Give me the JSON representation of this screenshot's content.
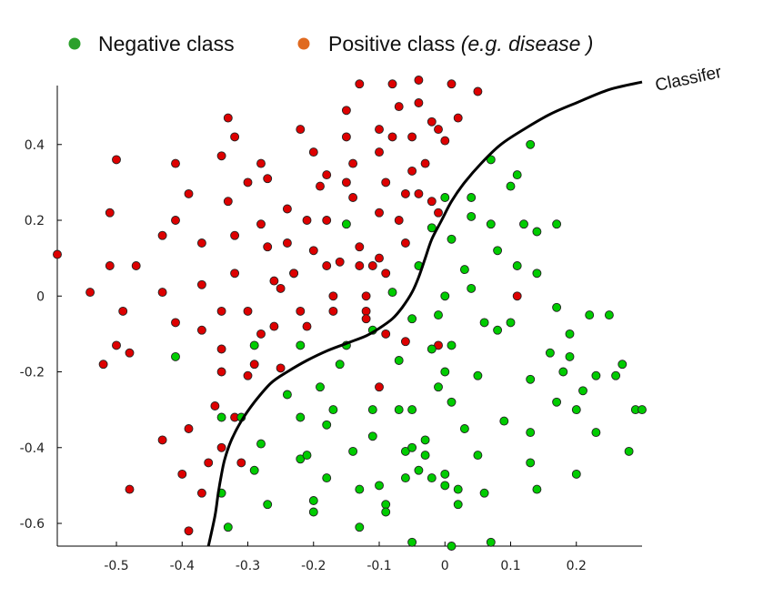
{
  "chart_data": {
    "type": "scatter",
    "legend": {
      "placement": "top",
      "entries": [
        {
          "label": "Negative class",
          "color": "#2ca02c"
        },
        {
          "label": "Positive class ",
          "label_italic": "(e.g. disease )",
          "color": "#e06a20"
        }
      ]
    },
    "annotation": "Classifer",
    "xlim": [
      -0.59,
      0.3
    ],
    "ylim": [
      -0.66,
      0.57
    ],
    "xticks": [
      -0.5,
      -0.4,
      -0.3,
      -0.2,
      -0.1,
      0,
      0.1,
      0.2
    ],
    "xtick_labels": [
      "-0.5",
      "-0.4",
      "-0.3",
      "-0.2",
      "-0.1",
      "0",
      "0.1",
      "0.2"
    ],
    "yticks": [
      0.4,
      0.2,
      0,
      -0.2,
      -0.4,
      -0.6
    ],
    "ytick_labels": [
      "0.4",
      "0.2",
      "0",
      "-0.2",
      "-0.4",
      "-0.6"
    ],
    "grid": false,
    "series": [
      {
        "name": "Positive class",
        "color": "#dd0000",
        "points": [
          [
            -0.59,
            0.11
          ],
          [
            -0.54,
            0.01
          ],
          [
            -0.52,
            -0.18
          ],
          [
            -0.51,
            0.22
          ],
          [
            -0.51,
            0.08
          ],
          [
            -0.5,
            0.36
          ],
          [
            -0.5,
            -0.13
          ],
          [
            -0.49,
            -0.04
          ],
          [
            -0.48,
            -0.15
          ],
          [
            -0.47,
            0.08
          ],
          [
            -0.48,
            -0.51
          ],
          [
            -0.43,
            0.16
          ],
          [
            -0.43,
            0.01
          ],
          [
            -0.43,
            -0.38
          ],
          [
            -0.41,
            0.2
          ],
          [
            -0.41,
            0.35
          ],
          [
            -0.41,
            -0.07
          ],
          [
            -0.4,
            -0.47
          ],
          [
            -0.39,
            0.27
          ],
          [
            -0.39,
            -0.35
          ],
          [
            -0.39,
            -0.62
          ],
          [
            -0.37,
            0.14
          ],
          [
            -0.37,
            0.03
          ],
          [
            -0.37,
            -0.09
          ],
          [
            -0.37,
            -0.52
          ],
          [
            -0.36,
            -0.44
          ],
          [
            -0.35,
            -0.29
          ],
          [
            -0.34,
            -0.14
          ],
          [
            -0.34,
            0.37
          ],
          [
            -0.34,
            -0.04
          ],
          [
            -0.34,
            -0.2
          ],
          [
            -0.34,
            -0.4
          ],
          [
            -0.33,
            0.25
          ],
          [
            -0.33,
            0.47
          ],
          [
            -0.32,
            0.42
          ],
          [
            -0.32,
            0.16
          ],
          [
            -0.32,
            0.06
          ],
          [
            -0.32,
            -0.32
          ],
          [
            -0.31,
            -0.44
          ],
          [
            -0.3,
            0.3
          ],
          [
            -0.3,
            -0.04
          ],
          [
            -0.3,
            -0.21
          ],
          [
            -0.29,
            -0.18
          ],
          [
            -0.28,
            0.35
          ],
          [
            -0.28,
            0.19
          ],
          [
            -0.28,
            -0.1
          ],
          [
            -0.27,
            0.13
          ],
          [
            -0.27,
            0.31
          ],
          [
            -0.26,
            0.04
          ],
          [
            -0.26,
            -0.08
          ],
          [
            -0.25,
            0.02
          ],
          [
            -0.25,
            -0.19
          ],
          [
            -0.24,
            0.23
          ],
          [
            -0.24,
            0.14
          ],
          [
            -0.23,
            0.06
          ],
          [
            -0.23,
            0.06
          ],
          [
            -0.22,
            0.44
          ],
          [
            -0.22,
            -0.04
          ],
          [
            -0.21,
            0.2
          ],
          [
            -0.21,
            -0.08
          ],
          [
            -0.2,
            0.38
          ],
          [
            -0.2,
            0.12
          ],
          [
            -0.19,
            0.29
          ],
          [
            -0.18,
            0.32
          ],
          [
            -0.18,
            0.2
          ],
          [
            -0.18,
            0.08
          ],
          [
            -0.17,
            0.0
          ],
          [
            -0.17,
            -0.04
          ],
          [
            -0.16,
            0.09
          ],
          [
            -0.15,
            0.49
          ],
          [
            -0.15,
            0.3
          ],
          [
            -0.15,
            0.42
          ],
          [
            -0.14,
            0.35
          ],
          [
            -0.14,
            0.26
          ],
          [
            -0.13,
            0.56
          ],
          [
            -0.13,
            0.13
          ],
          [
            -0.13,
            0.08
          ],
          [
            -0.12,
            0.0
          ],
          [
            -0.12,
            -0.04
          ],
          [
            -0.12,
            -0.06
          ],
          [
            -0.11,
            0.08
          ],
          [
            -0.1,
            0.44
          ],
          [
            -0.1,
            0.38
          ],
          [
            -0.1,
            0.22
          ],
          [
            -0.1,
            0.1
          ],
          [
            -0.1,
            -0.24
          ],
          [
            -0.09,
            0.3
          ],
          [
            -0.09,
            0.06
          ],
          [
            -0.09,
            -0.1
          ],
          [
            -0.08,
            0.56
          ],
          [
            -0.08,
            0.42
          ],
          [
            -0.07,
            0.2
          ],
          [
            -0.07,
            0.5
          ],
          [
            -0.06,
            0.27
          ],
          [
            -0.06,
            0.14
          ],
          [
            -0.06,
            -0.12
          ],
          [
            -0.05,
            0.42
          ],
          [
            -0.05,
            0.33
          ],
          [
            -0.04,
            0.57
          ],
          [
            -0.04,
            0.51
          ],
          [
            -0.04,
            0.27
          ],
          [
            -0.03,
            0.35
          ],
          [
            -0.02,
            0.46
          ],
          [
            -0.02,
            0.25
          ],
          [
            -0.01,
            0.44
          ],
          [
            -0.01,
            0.22
          ],
          [
            -0.01,
            -0.13
          ],
          [
            0.0,
            0.41
          ],
          [
            0.01,
            0.56
          ],
          [
            0.02,
            0.47
          ],
          [
            0.05,
            0.54
          ],
          [
            0.11,
            0.0
          ]
        ]
      },
      {
        "name": "Negative class",
        "color": "#00cc00",
        "points": [
          [
            -0.41,
            -0.16
          ],
          [
            -0.34,
            -0.32
          ],
          [
            -0.34,
            -0.52
          ],
          [
            -0.33,
            -0.61
          ],
          [
            -0.31,
            -0.32
          ],
          [
            -0.29,
            -0.13
          ],
          [
            -0.29,
            -0.46
          ],
          [
            -0.28,
            -0.39
          ],
          [
            -0.27,
            -0.55
          ],
          [
            -0.24,
            -0.26
          ],
          [
            -0.22,
            -0.13
          ],
          [
            -0.22,
            -0.32
          ],
          [
            -0.22,
            -0.43
          ],
          [
            -0.21,
            -0.42
          ],
          [
            -0.2,
            -0.57
          ],
          [
            -0.2,
            -0.54
          ],
          [
            -0.19,
            -0.24
          ],
          [
            -0.18,
            -0.34
          ],
          [
            -0.18,
            -0.48
          ],
          [
            -0.17,
            -0.3
          ],
          [
            -0.16,
            -0.18
          ],
          [
            -0.15,
            0.19
          ],
          [
            -0.15,
            -0.13
          ],
          [
            -0.14,
            -0.41
          ],
          [
            -0.13,
            -0.51
          ],
          [
            -0.13,
            -0.61
          ],
          [
            -0.11,
            -0.09
          ],
          [
            -0.11,
            -0.3
          ],
          [
            -0.11,
            -0.37
          ],
          [
            -0.1,
            -0.5
          ],
          [
            -0.09,
            -0.55
          ],
          [
            -0.09,
            -0.57
          ],
          [
            -0.08,
            0.01
          ],
          [
            -0.07,
            -0.17
          ],
          [
            -0.07,
            -0.3
          ],
          [
            -0.06,
            -0.41
          ],
          [
            -0.06,
            -0.48
          ],
          [
            -0.05,
            -0.06
          ],
          [
            -0.05,
            -0.3
          ],
          [
            -0.05,
            -0.4
          ],
          [
            -0.05,
            -0.65
          ],
          [
            -0.04,
            0.08
          ],
          [
            -0.04,
            -0.46
          ],
          [
            -0.03,
            -0.42
          ],
          [
            -0.03,
            -0.38
          ],
          [
            -0.02,
            0.18
          ],
          [
            -0.02,
            -0.14
          ],
          [
            -0.02,
            -0.48
          ],
          [
            -0.01,
            -0.05
          ],
          [
            -0.01,
            -0.24
          ],
          [
            0.0,
            0.0
          ],
          [
            0.0,
            -0.2
          ],
          [
            0.0,
            -0.47
          ],
          [
            0.0,
            -0.5
          ],
          [
            0.0,
            0.26
          ],
          [
            0.01,
            0.15
          ],
          [
            0.01,
            -0.13
          ],
          [
            0.01,
            -0.28
          ],
          [
            0.01,
            -0.66
          ],
          [
            0.02,
            -0.51
          ],
          [
            0.02,
            -0.55
          ],
          [
            0.03,
            0.07
          ],
          [
            0.03,
            -0.35
          ],
          [
            0.04,
            0.02
          ],
          [
            0.04,
            0.21
          ],
          [
            0.04,
            0.26
          ],
          [
            0.05,
            -0.21
          ],
          [
            0.05,
            -0.42
          ],
          [
            0.06,
            -0.07
          ],
          [
            0.06,
            -0.52
          ],
          [
            0.07,
            0.36
          ],
          [
            0.07,
            0.19
          ],
          [
            0.07,
            -0.65
          ],
          [
            0.08,
            0.12
          ],
          [
            0.08,
            -0.09
          ],
          [
            0.09,
            -0.33
          ],
          [
            0.1,
            0.29
          ],
          [
            0.1,
            -0.07
          ],
          [
            0.11,
            0.32
          ],
          [
            0.11,
            0.08
          ],
          [
            0.12,
            0.19
          ],
          [
            0.13,
            0.4
          ],
          [
            0.13,
            -0.22
          ],
          [
            0.13,
            -0.36
          ],
          [
            0.13,
            -0.44
          ],
          [
            0.14,
            0.06
          ],
          [
            0.14,
            0.17
          ],
          [
            0.14,
            -0.51
          ],
          [
            0.16,
            -0.15
          ],
          [
            0.17,
            0.19
          ],
          [
            0.17,
            -0.03
          ],
          [
            0.17,
            -0.28
          ],
          [
            0.18,
            -0.2
          ],
          [
            0.19,
            -0.1
          ],
          [
            0.19,
            -0.16
          ],
          [
            0.2,
            -0.3
          ],
          [
            0.2,
            -0.47
          ],
          [
            0.21,
            -0.25
          ],
          [
            0.22,
            -0.05
          ],
          [
            0.23,
            -0.21
          ],
          [
            0.23,
            -0.36
          ],
          [
            0.25,
            -0.05
          ],
          [
            0.26,
            -0.21
          ],
          [
            0.27,
            -0.18
          ],
          [
            0.28,
            -0.41
          ],
          [
            0.29,
            -0.3
          ],
          [
            0.3,
            -0.3
          ]
        ]
      }
    ],
    "classifier_curve": [
      [
        -0.36,
        -0.66
      ],
      [
        -0.35,
        -0.58
      ],
      [
        -0.345,
        -0.52
      ],
      [
        -0.34,
        -0.47
      ],
      [
        -0.335,
        -0.43
      ],
      [
        -0.325,
        -0.38
      ],
      [
        -0.31,
        -0.33
      ],
      [
        -0.29,
        -0.28
      ],
      [
        -0.265,
        -0.23
      ],
      [
        -0.24,
        -0.2
      ],
      [
        -0.21,
        -0.17
      ],
      [
        -0.18,
        -0.145
      ],
      [
        -0.15,
        -0.125
      ],
      [
        -0.12,
        -0.105
      ],
      [
        -0.1,
        -0.085
      ],
      [
        -0.08,
        -0.06
      ],
      [
        -0.065,
        -0.03
      ],
      [
        -0.05,
        0.01
      ],
      [
        -0.04,
        0.05
      ],
      [
        -0.03,
        0.1
      ],
      [
        -0.02,
        0.15
      ],
      [
        -0.005,
        0.2
      ],
      [
        0.01,
        0.25
      ],
      [
        0.03,
        0.3
      ],
      [
        0.055,
        0.35
      ],
      [
        0.085,
        0.4
      ],
      [
        0.12,
        0.44
      ],
      [
        0.16,
        0.48
      ],
      [
        0.2,
        0.51
      ],
      [
        0.25,
        0.545
      ],
      [
        0.3,
        0.565
      ]
    ]
  }
}
